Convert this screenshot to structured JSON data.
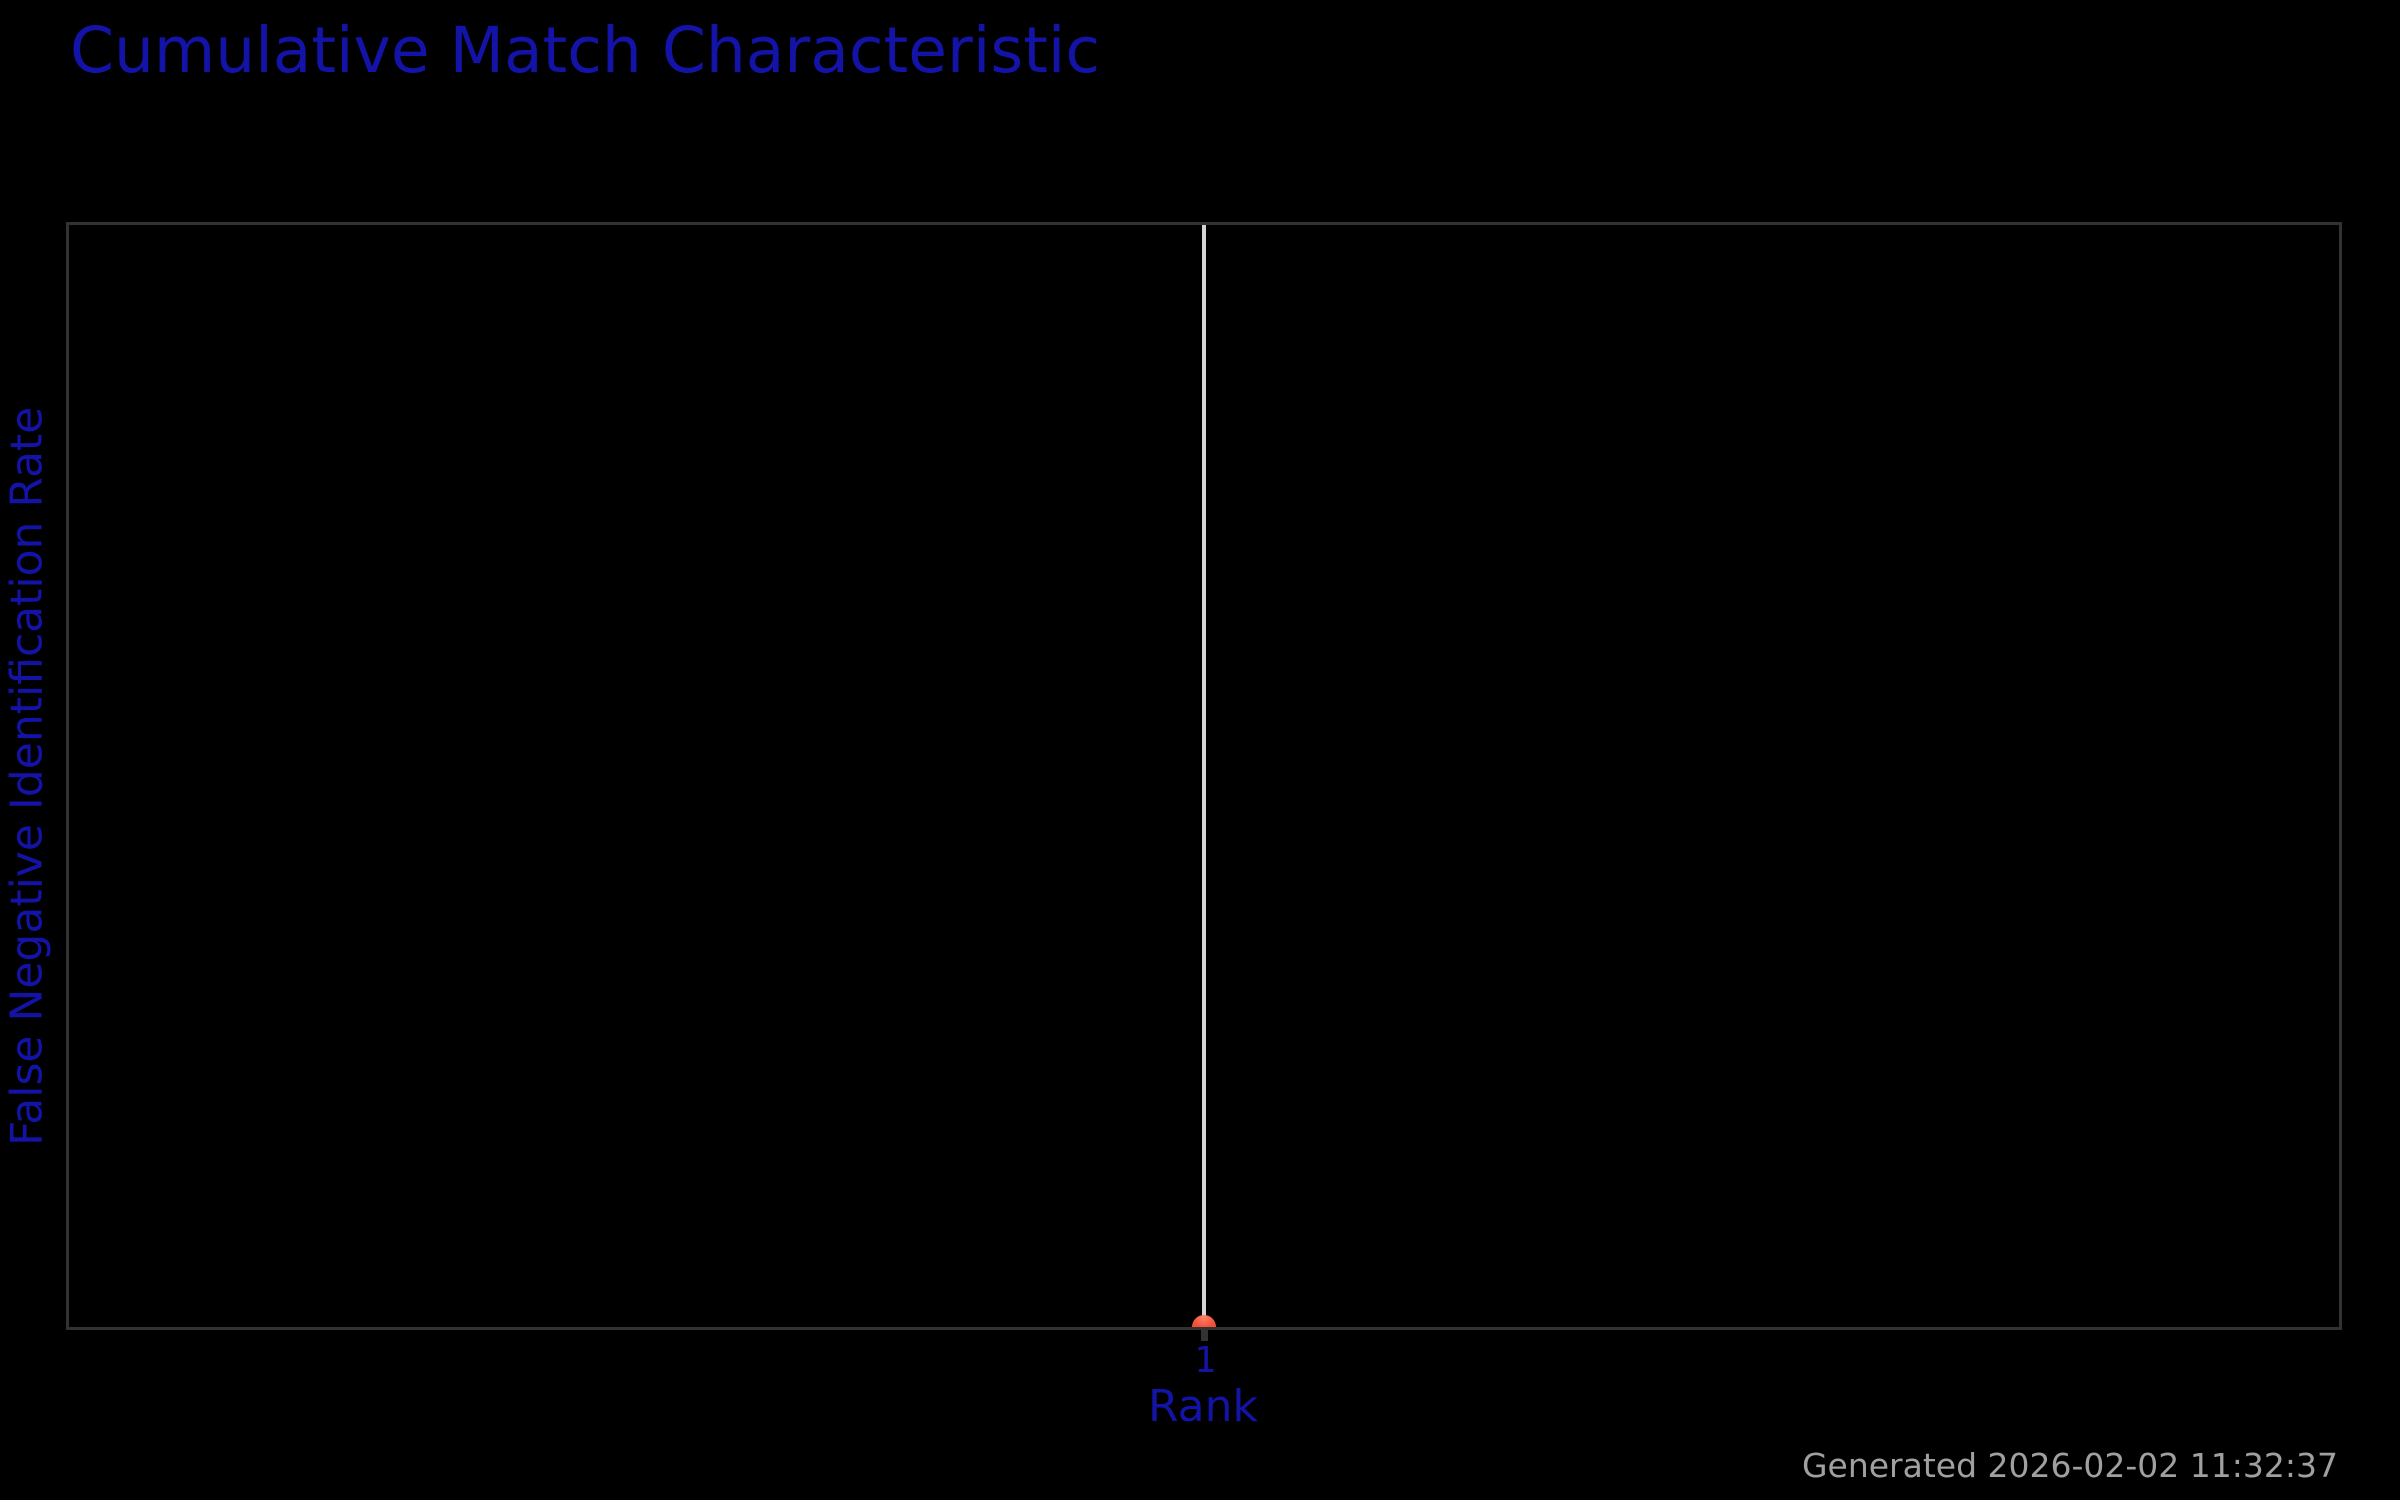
{
  "title": {
    "text": "Cumulative Match Characteristic"
  },
  "footer": {
    "text": "Generated 2026-02-02 11:32:37"
  },
  "chart_data": {
    "type": "line",
    "title": "Cumulative Match Characteristic",
    "xlabel": "Rank",
    "ylabel": "False Negative Identification Rate",
    "x_tick_labels": [
      "1"
    ],
    "x_ticks": [
      1
    ],
    "y_tick_labels": [],
    "grid": false,
    "legend": false,
    "plot_background": "#000000",
    "series": [
      {
        "name": "cmc-trace",
        "style": "vertical-line",
        "x": [
          1,
          1
        ],
        "y_relative": [
          0.0,
          1.0
        ],
        "color": "#d4d4d4"
      }
    ],
    "markers": [
      {
        "x": 1,
        "y_relative": 0.0,
        "shape": "half-circle-dome",
        "color": "#f2513b"
      }
    ]
  },
  "colors": {
    "bg": "#000000",
    "blue": "#1313a8",
    "axis": "#323232",
    "line": "#d4d4d4",
    "marker": "#f2513b",
    "marker-hi": "#ff8168",
    "gray": "#a0a0a0"
  }
}
